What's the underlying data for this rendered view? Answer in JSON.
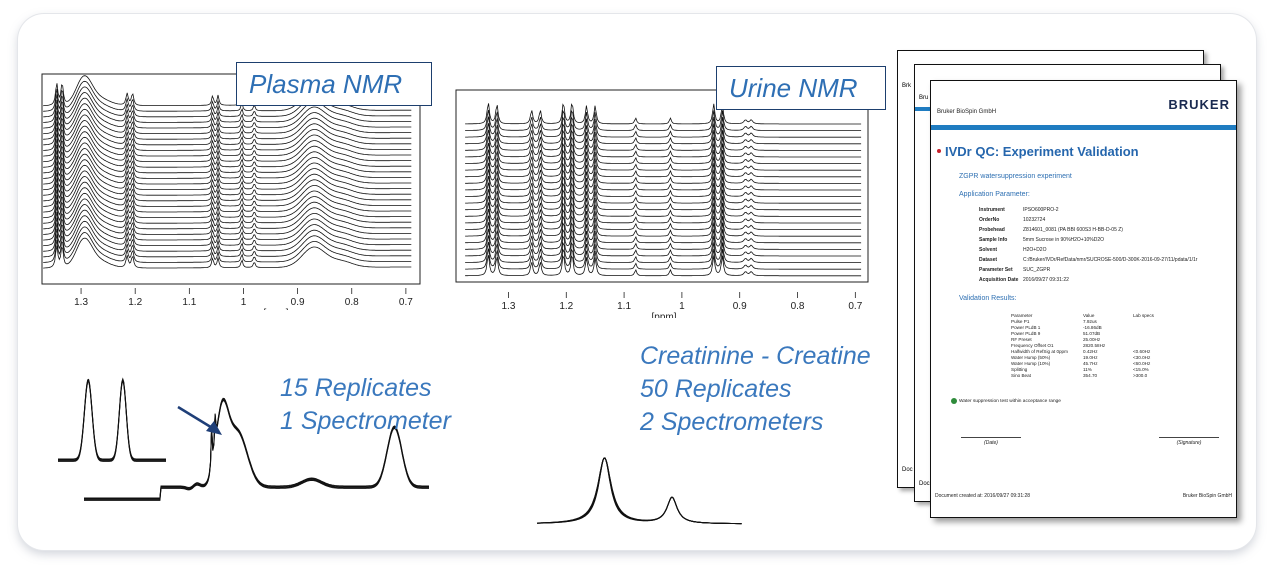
{
  "plasma": {
    "callout": "Plasma NMR",
    "ticks": [
      "1.3",
      "1.2",
      "1.1",
      "1",
      "0.9",
      "0.8",
      "0.7"
    ],
    "xlabel": "[ppm]",
    "replicates": "15 Replicates",
    "spectrometers": "1 Spectrometer"
  },
  "urine": {
    "callout": "Urine NMR",
    "ticks": [
      "1.3",
      "1.2",
      "1.1",
      "1",
      "0.9",
      "0.8",
      "0.7"
    ],
    "xlabel": "[ppm]",
    "compound": "Creatinine - Creatine",
    "replicates": "50 Replicates",
    "spectrometers": "2 Spectrometers"
  },
  "report": {
    "company": "Bruker BioSpin GmbH",
    "logo": "BRUKER",
    "title": "IVDr QC: Experiment Validation",
    "experiment": "ZGPR watersuppression experiment",
    "app_param_heading": "Application Parameter:",
    "params": [
      {
        "k": "Instrument",
        "v": "IPSO600PRO-2"
      },
      {
        "k": "OrderNo",
        "v": "10232724"
      },
      {
        "k": "Probehead",
        "v": "Z814601_0081 (PA BBI 600S3 H-BB-D-05 Z)"
      },
      {
        "k": "Sample Info",
        "v": "5mm Sucrose in 90%H2O+10%D2O"
      },
      {
        "k": "Solvent",
        "v": "H2O+D2O"
      },
      {
        "k": "Dataset",
        "v": "C:/Bruker/IVDr/RefData/nmr/SUCROSE-500/D-300K-2016-09-27/11/pdata/1/1r"
      },
      {
        "k": "Parameter Set",
        "v": "SUC_ZGPR"
      },
      {
        "k": "Acquisition Date",
        "v": "2016/09/27 09:31:22"
      }
    ],
    "validation_heading": "Validation Results:",
    "result_headers": [
      "Parameter",
      "Value",
      "Lab specs"
    ],
    "results": [
      [
        "Pulse P1",
        "7.92us",
        ""
      ],
      [
        "Power PLdB 1",
        "-16.86dB",
        ""
      ],
      [
        "Power PLdB 9",
        "51.07dB",
        ""
      ],
      [
        "RF Preset",
        "25.00Hz",
        ""
      ],
      [
        "Frequency Offset O1",
        "2820.58Hz",
        ""
      ],
      [
        "Halfwidth of RefSig at 0ppm",
        "0.42Hz",
        "<0.60Hz"
      ],
      [
        "Water Hump (50%)",
        "19.0Hz",
        "<30.0Hz"
      ],
      [
        "Water Hump (10%)",
        "45.7Hz",
        "<60.0Hz"
      ],
      [
        "Splitting",
        "11%",
        "<15.0%"
      ],
      [
        "Sino Beat",
        "354.70",
        ">300.0"
      ]
    ],
    "note": "Water suppression test within acceptance range",
    "date_label": "(Date)",
    "signature_label": "(Signature)",
    "footer_left": "Document created at: 2016/09/27 09:31:28",
    "footer_right": "Bruker BioSpin GmbH",
    "back_page_marks": [
      "Brk",
      "Bru",
      "Doc",
      "Doc"
    ]
  }
}
